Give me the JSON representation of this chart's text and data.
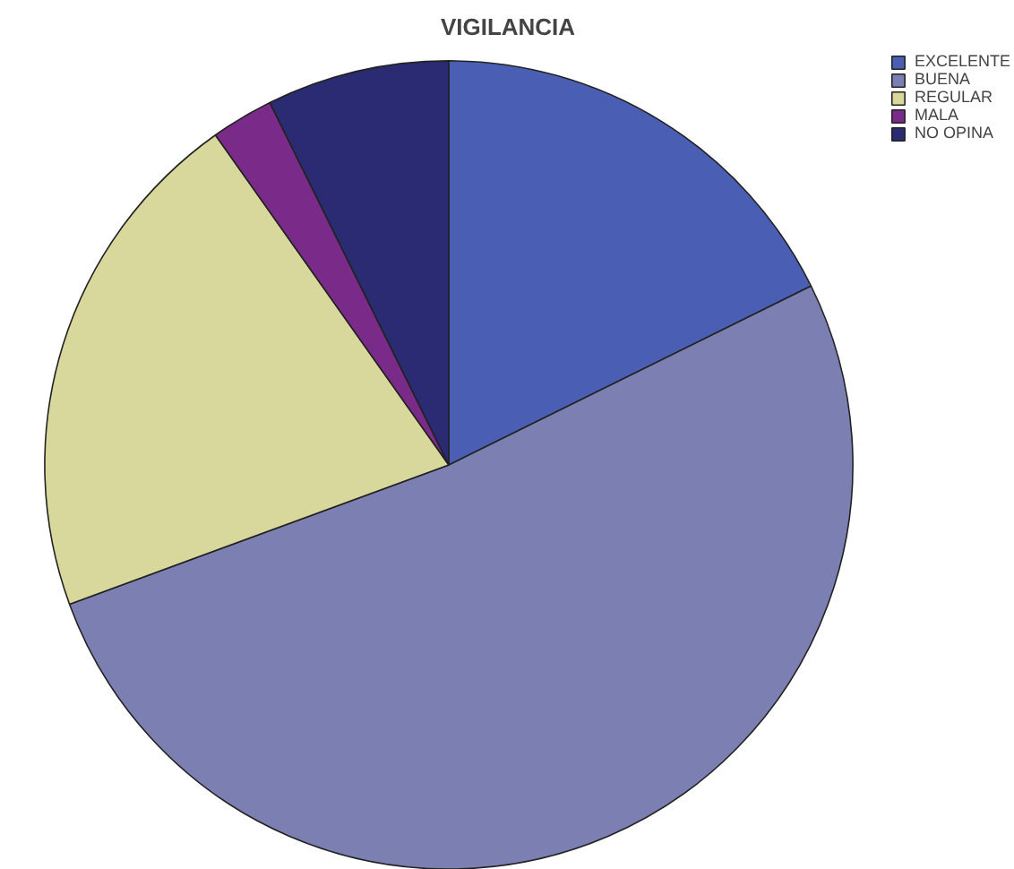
{
  "chart_data": {
    "type": "pie",
    "title": "VIGILANCIA",
    "categories": [
      "EXCELENTE",
      "BUENA",
      "REGULAR",
      "MALA",
      "NO OPINA"
    ],
    "values": [
      17.7,
      51.7,
      20.8,
      2.5,
      7.3
    ],
    "colors": [
      "#4a5fb4",
      "#7c7fb2",
      "#d8d79c",
      "#7a2b8a",
      "#2b2b74"
    ],
    "legend": "top right"
  }
}
